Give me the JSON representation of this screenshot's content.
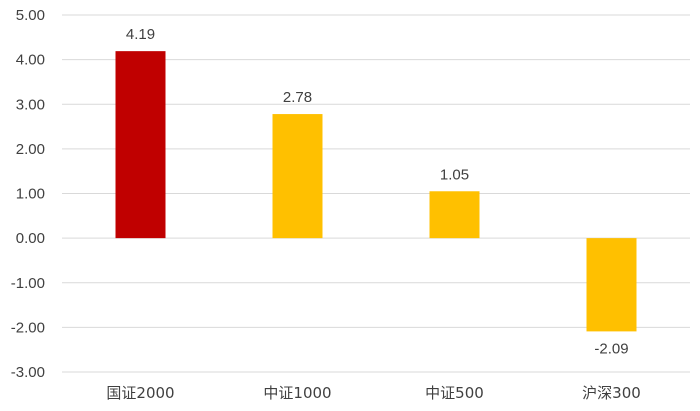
{
  "chart_data": {
    "type": "bar",
    "categories": [
      "国证2000",
      "中证1000",
      "中证500",
      "沪深300"
    ],
    "values": [
      4.19,
      2.78,
      1.05,
      -2.09
    ],
    "data_labels": [
      "4.19",
      "2.78",
      "1.05",
      "-2.09"
    ],
    "colors": [
      "#c00000",
      "#ffc000",
      "#ffc000",
      "#ffc000"
    ],
    "ylim": [
      -3,
      5
    ],
    "yticks": [
      5,
      4,
      3,
      2,
      1,
      0,
      -1,
      -2,
      -3
    ],
    "ytick_labels": [
      "5.00",
      "4.00",
      "3.00",
      "2.00",
      "1.00",
      "0.00",
      "-1.00",
      "-2.00",
      "-3.00"
    ],
    "grid": true,
    "legend": "none",
    "title": "",
    "xlabel": "",
    "ylabel": ""
  }
}
